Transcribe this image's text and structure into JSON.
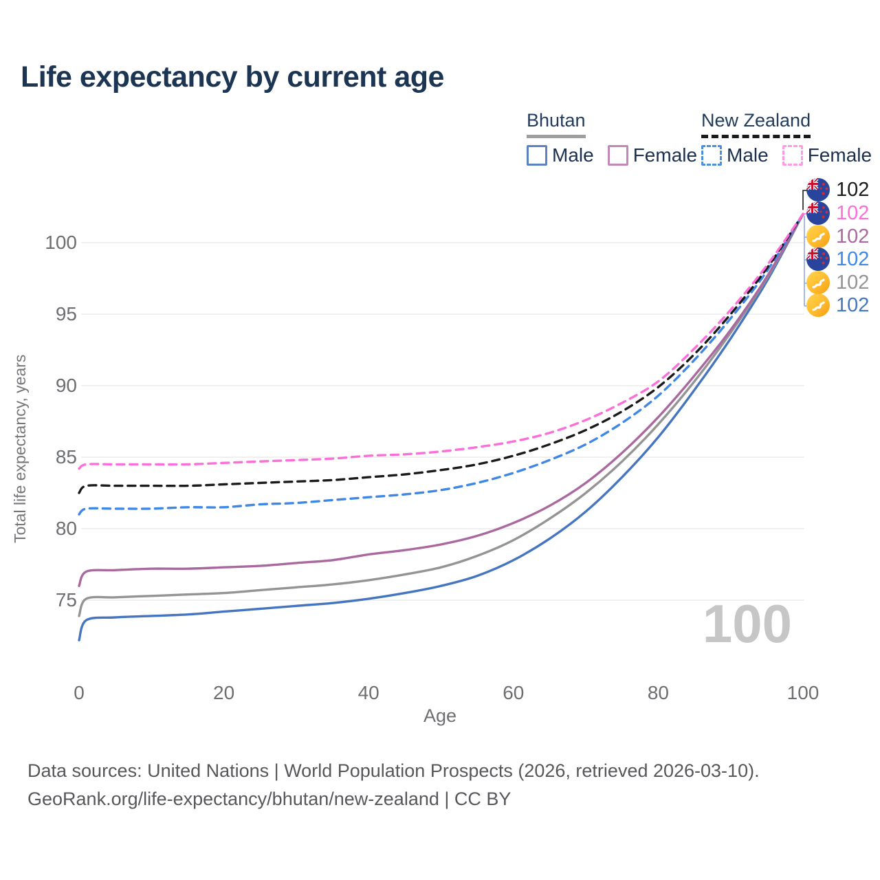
{
  "title": "Life expectancy by current age",
  "legend": {
    "groups": [
      {
        "name": "Bhutan",
        "underline_style": "solid",
        "underline_color": "#9e9e9e",
        "items": [
          {
            "label": "Male",
            "color": "#5b83c0",
            "dashed": false
          },
          {
            "label": "Female",
            "color": "#c288b8",
            "dashed": false
          }
        ]
      },
      {
        "name": "New Zealand",
        "underline_style": "dashed",
        "underline_color": "#1a1a1a",
        "items": [
          {
            "label": "Male",
            "color": "#4a90e2",
            "dashed": true
          },
          {
            "label": "Female",
            "color": "#ff9ae3",
            "dashed": true
          }
        ]
      }
    ]
  },
  "watermark": {
    "text": "100"
  },
  "footer": {
    "line1": "Data sources: United Nations | World Population Prospects (2026, retrieved 2026-03-10).",
    "line2": "GeoRank.org/life-expectancy/bhutan/new-zealand | CC BY"
  },
  "chart_data": {
    "type": "line",
    "title": "Life expectancy by current age",
    "xlabel": "Age",
    "ylabel": "Total life expectancy, years",
    "xlim": [
      0,
      100
    ],
    "ylim": [
      71.5,
      103.5
    ],
    "x_ticks": [
      0,
      20,
      40,
      60,
      80,
      100
    ],
    "y_ticks": [
      75,
      80,
      85,
      90,
      95,
      100
    ],
    "grid": "horizontal",
    "legend_position": "top-right",
    "ages": [
      0,
      1,
      5,
      10,
      15,
      20,
      25,
      30,
      35,
      40,
      45,
      50,
      55,
      60,
      65,
      70,
      75,
      80,
      85,
      90,
      95,
      100
    ],
    "series": [
      {
        "name": "Bhutan Male",
        "country": "bhutan",
        "sex": "male",
        "color": "#4675c0",
        "dashed": false,
        "end_label": "102",
        "values": [
          72.2,
          73.6,
          73.8,
          73.9,
          74.0,
          74.2,
          74.4,
          74.6,
          74.8,
          75.1,
          75.5,
          76.0,
          76.7,
          77.8,
          79.3,
          81.2,
          83.6,
          86.4,
          89.7,
          93.3,
          97.3,
          102.0
        ]
      },
      {
        "name": "Bhutan Total",
        "country": "bhutan",
        "sex": "both",
        "color": "#949494",
        "dashed": false,
        "end_label": "102",
        "values": [
          73.9,
          75.1,
          75.2,
          75.3,
          75.4,
          75.5,
          75.7,
          75.9,
          76.1,
          76.4,
          76.8,
          77.3,
          78.1,
          79.2,
          80.7,
          82.5,
          84.7,
          87.3,
          90.3,
          93.7,
          97.5,
          102.0
        ]
      },
      {
        "name": "Bhutan Female",
        "country": "bhutan",
        "sex": "female",
        "color": "#a9699f",
        "dashed": false,
        "end_label": "102",
        "values": [
          76.0,
          77.0,
          77.1,
          77.2,
          77.2,
          77.3,
          77.4,
          77.6,
          77.8,
          78.2,
          78.5,
          78.9,
          79.5,
          80.4,
          81.6,
          83.2,
          85.3,
          87.8,
          90.7,
          93.9,
          97.6,
          102.0
        ]
      },
      {
        "name": "New Zealand Male",
        "country": "new-zealand",
        "sex": "male",
        "color": "#3f87e5",
        "dashed": true,
        "end_label": "102",
        "values": [
          81.0,
          81.4,
          81.4,
          81.4,
          81.5,
          81.5,
          81.7,
          81.8,
          82.0,
          82.2,
          82.4,
          82.7,
          83.2,
          83.9,
          84.8,
          85.9,
          87.4,
          89.3,
          91.8,
          94.7,
          98.0,
          102.0
        ]
      },
      {
        "name": "New Zealand Total",
        "country": "new-zealand",
        "sex": "both",
        "color": "#1a1a1a",
        "dashed": true,
        "end_label": "102",
        "values": [
          82.5,
          83.0,
          83.0,
          83.0,
          83.0,
          83.1,
          83.2,
          83.3,
          83.4,
          83.6,
          83.8,
          84.1,
          84.5,
          85.1,
          85.9,
          86.9,
          88.2,
          89.9,
          92.2,
          95.0,
          98.2,
          102.0
        ]
      },
      {
        "name": "New Zealand Female",
        "country": "new-zealand",
        "sex": "female",
        "color": "#fb6fd8",
        "dashed": true,
        "end_label": "102",
        "values": [
          84.2,
          84.5,
          84.5,
          84.5,
          84.5,
          84.6,
          84.7,
          84.8,
          84.9,
          85.1,
          85.2,
          85.4,
          85.7,
          86.1,
          86.7,
          87.6,
          88.8,
          90.3,
          92.6,
          95.3,
          98.4,
          102.0
        ]
      }
    ],
    "end_labels": [
      {
        "country": "new-zealand",
        "value": "102",
        "color": "#1a1a1a"
      },
      {
        "country": "new-zealand",
        "value": "102",
        "color": "#fb6fd8"
      },
      {
        "country": "bhutan",
        "value": "102",
        "color": "#a9699f"
      },
      {
        "country": "new-zealand",
        "value": "102",
        "color": "#3f87e5"
      },
      {
        "country": "bhutan",
        "value": "102",
        "color": "#949494"
      },
      {
        "country": "bhutan",
        "value": "102",
        "color": "#4675c0"
      }
    ]
  }
}
